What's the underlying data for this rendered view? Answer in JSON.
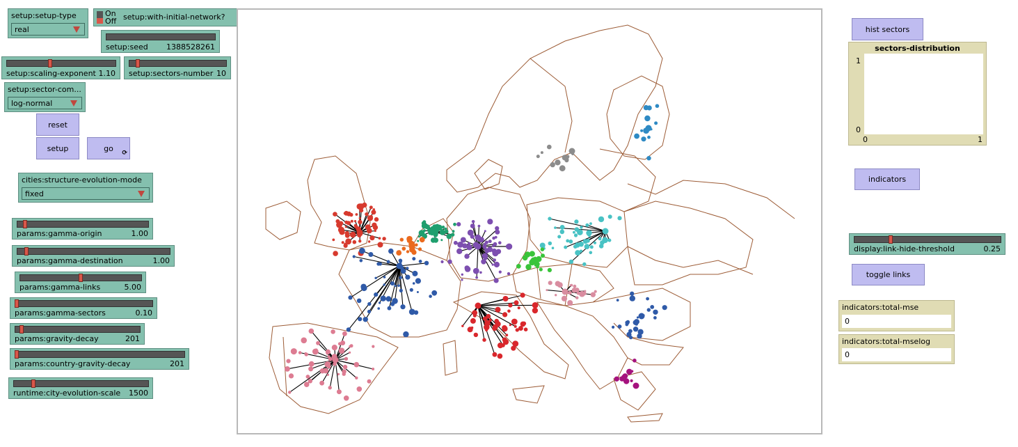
{
  "setup": {
    "setup_type_label": "setup:setup-type",
    "setup_type_value": "real",
    "network_switch_label": "setup:with-initial-network?",
    "switch_on": "On",
    "switch_off": "Off",
    "seed_label": "setup:seed",
    "seed_value": "1388528261",
    "scaling_label": "setup:scaling-exponent",
    "scaling_value": "1.10",
    "sectors_label": "setup:sectors-number",
    "sectors_value": "10",
    "sector_comp_label": "setup:sector-com...",
    "sector_comp_value": "log-normal"
  },
  "buttons": {
    "reset": "reset",
    "setup": "setup",
    "go": "go",
    "hist_sectors": "hist sectors",
    "indicators": "indicators",
    "toggle_links": "toggle links"
  },
  "cities": {
    "mode_label": "cities:structure-evolution-mode",
    "mode_value": "fixed"
  },
  "params": [
    {
      "label": "params:gamma-origin",
      "value": "1.00",
      "fraction": 0.05
    },
    {
      "label": "params:gamma-destination",
      "value": "1.00",
      "fraction": 0.05
    },
    {
      "label": "params:gamma-links",
      "value": "5.00",
      "fraction": 0.5
    },
    {
      "label": "params:gamma-sectors",
      "value": "0.10",
      "fraction": 0.0
    },
    {
      "label": "params:gravity-decay",
      "value": "201",
      "fraction": 0.04
    },
    {
      "label": "params:country-gravity-decay",
      "value": "201",
      "fraction": 0.0
    },
    {
      "label": "runtime:city-evolution-scale",
      "value": "1500",
      "fraction": 0.14
    }
  ],
  "plot": {
    "title": "sectors-distribution",
    "y_max": "1",
    "y_min": "0",
    "x_min": "0",
    "x_max": "1"
  },
  "display": {
    "threshold_label": "display:link-hide-threshold",
    "threshold_value": "0.25"
  },
  "indicators": {
    "mse_label": "indicators:total-mse",
    "mse_value": "0",
    "mselog_label": "indicators:total-mselog",
    "mselog_value": "0"
  },
  "colors": {
    "widget": "#84c0ae",
    "button": "#bfbcf0",
    "monitor": "#e0dcb4",
    "border_line": "#9c5b35"
  }
}
